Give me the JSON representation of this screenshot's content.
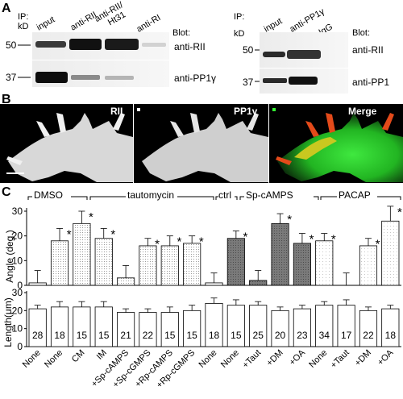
{
  "panel_a": {
    "letter": "A",
    "left": {
      "ip": "IP:",
      "kd": "kD",
      "lanes": [
        "input",
        "anti-RII",
        "anti-RII/\nHt31",
        "anti-RI"
      ],
      "blot": "Blot:",
      "rows": [
        {
          "marker": "50",
          "label": "anti-RII"
        },
        {
          "marker": "37",
          "label": "anti-PP1γ"
        }
      ]
    },
    "right": {
      "ip": "IP:",
      "kd": "kD",
      "lanes": [
        "input",
        "anti-PP1γ",
        "IgG"
      ],
      "blot": "Blot:",
      "rows": [
        {
          "marker": "50",
          "label": "anti-RII"
        },
        {
          "marker": "37",
          "label": "anti-PP1"
        }
      ]
    }
  },
  "panel_b": {
    "letter": "B",
    "labels": [
      "RII",
      "PP1γ",
      "Merge"
    ]
  },
  "panel_c": {
    "letter": "C",
    "groups": [
      "DMSO",
      "tautomycin",
      "ctrl",
      "Sp-cAMPS",
      "PACAP"
    ],
    "angle_ylabel": "Angle (deg.)",
    "length_ylabel": "Length(μm)",
    "angle_ticks": [
      "0",
      "10",
      "20",
      "30"
    ],
    "length_ticks": [
      "0",
      "10",
      "20",
      "30"
    ],
    "sig_marker": "*"
  },
  "chart_data": [
    {
      "type": "bar",
      "title": "",
      "ylabel": "Angle (deg.)",
      "ylim": [
        0,
        30
      ],
      "categories": [
        "None",
        "None",
        "CM",
        "IM",
        "+Sp-cAMPS",
        "+Sp-cGMPS",
        "+Rp-cAMPS",
        "+Rp-cGMPS",
        "None",
        "None",
        "+Taut",
        "+DM",
        "+OA",
        "None",
        "+Taut",
        "+DM",
        "+OA"
      ],
      "values": [
        1,
        18,
        25,
        19,
        3,
        16,
        16,
        17,
        1,
        19,
        2,
        25,
        17,
        18,
        0,
        16,
        26
      ],
      "errors": [
        5,
        5,
        5,
        4,
        5,
        3,
        4,
        3,
        4,
        3,
        4,
        4,
        4,
        3,
        5,
        3,
        6
      ],
      "significant": [
        false,
        true,
        true,
        true,
        false,
        true,
        true,
        true,
        false,
        true,
        false,
        true,
        true,
        true,
        false,
        true,
        true
      ],
      "fills": [
        "#ffffff",
        "#e8e8e8",
        "#e8e8e8",
        "#e8e8e8",
        "#e8e8e8",
        "#e8e8e8",
        "#e8e8e8",
        "#e8e8e8",
        "#ffffff",
        "#8a8a8a",
        "#8a8a8a",
        "#8a8a8a",
        "#8a8a8a",
        "#f2f2f2",
        "#f2f2f2",
        "#f2f2f2",
        "#f2f2f2"
      ]
    },
    {
      "type": "bar",
      "title": "",
      "ylabel": "Length(μm)",
      "ylim": [
        0,
        30
      ],
      "categories": [
        "None",
        "None",
        "CM",
        "IM",
        "+Sp-cAMPS",
        "+Sp-cGMPS",
        "+Rp-cAMPS",
        "+Rp-cGMPS",
        "None",
        "None",
        "+Taut",
        "+DM",
        "+OA",
        "None",
        "+Taut",
        "+DM",
        "+OA"
      ],
      "values": [
        21,
        22,
        22,
        22,
        19,
        19,
        19,
        20,
        24,
        23,
        23,
        20,
        21,
        23,
        23,
        20,
        21
      ],
      "errors": [
        2,
        3,
        3,
        3,
        2,
        2,
        3,
        3,
        3,
        3,
        2,
        2,
        2,
        2,
        3,
        2,
        2
      ],
      "n_labels": [
        "28",
        "18",
        "15",
        "15",
        "21",
        "22",
        "15",
        "15",
        "18",
        "15",
        "25",
        "20",
        "23",
        "34",
        "17",
        "22",
        "18"
      ]
    }
  ]
}
